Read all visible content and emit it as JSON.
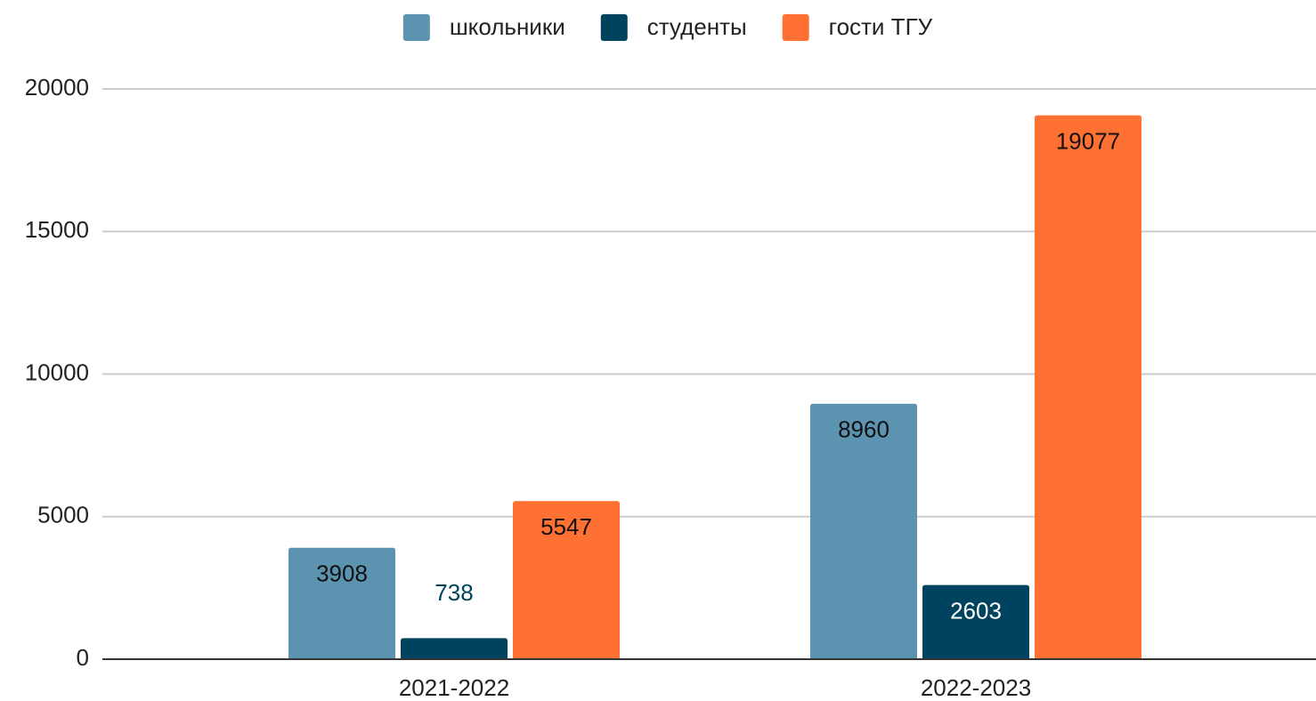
{
  "chart_data": {
    "type": "bar",
    "categories": [
      "2021-2022",
      "2022-2023"
    ],
    "series": [
      {
        "name": "школьники",
        "color": "#5b93b0",
        "values": [
          3908,
          8960
        ]
      },
      {
        "name": "студенты",
        "color": "#00435f",
        "values": [
          738,
          2603
        ]
      },
      {
        "name": "гости ТГУ",
        "color": "#ff7033",
        "values": [
          5547,
          19077
        ]
      }
    ],
    "ylim": [
      0,
      20000
    ],
    "yticks": [
      0,
      5000,
      10000,
      15000,
      20000
    ],
    "grid": true,
    "legend": "top"
  }
}
